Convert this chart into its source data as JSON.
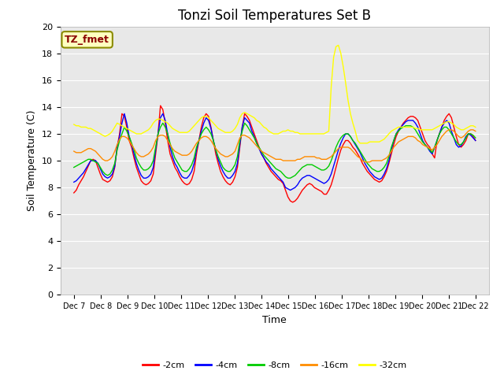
{
  "title": "Tonzi Soil Temperatures Set B",
  "xlabel": "Time",
  "ylabel": "Soil Temperature (C)",
  "ylim": [
    0,
    20
  ],
  "yticks": [
    0,
    2,
    4,
    6,
    8,
    10,
    12,
    14,
    16,
    18,
    20
  ],
  "xtick_labels": [
    "Dec 7",
    "Dec 8",
    "Dec 9",
    "Dec 10",
    "Dec 11",
    "Dec 12",
    "Dec 13",
    "Dec 14",
    "Dec 15",
    "Dec 16",
    "Dec 17",
    "Dec 18",
    "Dec 19",
    "Dec 20",
    "Dec 21",
    "Dec 22"
  ],
  "annotation_text": "TZ_fmet",
  "annotation_color": "#8B0000",
  "annotation_bg": "#FFFFC0",
  "annotation_edge": "#8B8B00",
  "legend_labels": [
    "-2cm",
    "-4cm",
    "-8cm",
    "-16cm",
    "-32cm"
  ],
  "legend_colors": [
    "#FF0000",
    "#0000FF",
    "#00CC00",
    "#FF8C00",
    "#FFFF00"
  ],
  "background_color": "#E8E8E8",
  "title_fontsize": 12,
  "tick_fontsize": 7,
  "axis_label_fontsize": 9,
  "series": {
    "neg2cm": [
      7.6,
      7.8,
      8.2,
      8.5,
      8.8,
      9.2,
      9.6,
      10.0,
      10.1,
      10.0,
      9.5,
      9.0,
      8.6,
      8.5,
      8.4,
      8.5,
      8.8,
      9.5,
      11.0,
      12.0,
      13.5,
      13.3,
      12.5,
      11.5,
      11.0,
      10.2,
      9.5,
      9.0,
      8.5,
      8.3,
      8.2,
      8.3,
      8.5,
      9.0,
      10.5,
      12.0,
      14.1,
      13.8,
      12.8,
      11.5,
      10.5,
      10.0,
      9.5,
      9.2,
      8.8,
      8.5,
      8.3,
      8.2,
      8.3,
      8.6,
      9.2,
      10.5,
      11.5,
      12.5,
      13.2,
      13.5,
      13.3,
      12.5,
      11.5,
      10.5,
      9.8,
      9.2,
      8.8,
      8.5,
      8.3,
      8.2,
      8.4,
      8.8,
      9.5,
      11.0,
      12.5,
      13.5,
      13.3,
      13.0,
      12.5,
      12.0,
      11.5,
      11.0,
      10.5,
      10.2,
      9.8,
      9.5,
      9.2,
      9.0,
      8.8,
      8.6,
      8.5,
      8.3,
      7.8,
      7.3,
      7.0,
      6.9,
      7.0,
      7.2,
      7.5,
      7.8,
      8.0,
      8.2,
      8.3,
      8.2,
      8.0,
      7.9,
      7.8,
      7.7,
      7.5,
      7.5,
      7.8,
      8.2,
      8.8,
      9.5,
      10.2,
      10.8,
      11.2,
      11.5,
      11.5,
      11.3,
      11.0,
      10.8,
      10.5,
      10.2,
      9.8,
      9.5,
      9.2,
      9.0,
      8.8,
      8.6,
      8.5,
      8.4,
      8.5,
      8.8,
      9.2,
      9.8,
      10.5,
      11.2,
      11.8,
      12.2,
      12.5,
      12.8,
      13.0,
      13.2,
      13.3,
      13.3,
      13.2,
      13.0,
      12.5,
      12.0,
      11.5,
      11.2,
      11.0,
      10.5,
      10.2,
      11.5,
      12.0,
      12.5,
      13.0,
      13.3,
      13.5,
      13.2,
      12.5,
      11.8,
      11.2,
      11.0,
      11.2,
      11.5,
      12.0,
      12.0,
      11.8,
      11.5
    ],
    "neg4cm": [
      8.4,
      8.5,
      8.7,
      8.9,
      9.1,
      9.4,
      9.7,
      10.0,
      10.0,
      10.0,
      9.8,
      9.4,
      9.0,
      8.8,
      8.7,
      8.8,
      9.0,
      9.6,
      11.0,
      11.8,
      12.8,
      13.5,
      12.8,
      11.8,
      11.2,
      10.5,
      9.8,
      9.3,
      8.9,
      8.7,
      8.7,
      8.8,
      9.0,
      9.5,
      10.8,
      12.0,
      13.2,
      13.5,
      13.0,
      12.0,
      11.0,
      10.3,
      9.8,
      9.5,
      9.1,
      8.8,
      8.7,
      8.7,
      8.9,
      9.2,
      9.8,
      10.8,
      11.5,
      12.2,
      12.8,
      13.2,
      13.0,
      12.4,
      11.5,
      10.8,
      10.1,
      9.6,
      9.2,
      8.9,
      8.7,
      8.7,
      8.9,
      9.2,
      9.8,
      11.2,
      12.5,
      13.2,
      13.0,
      12.8,
      12.2,
      11.8,
      11.3,
      10.9,
      10.5,
      10.2,
      9.9,
      9.7,
      9.4,
      9.2,
      9.0,
      8.8,
      8.6,
      8.4,
      8.0,
      7.9,
      7.8,
      7.9,
      8.0,
      8.2,
      8.5,
      8.7,
      8.8,
      8.9,
      8.9,
      8.8,
      8.7,
      8.6,
      8.5,
      8.4,
      8.3,
      8.4,
      8.6,
      9.0,
      9.6,
      10.2,
      10.8,
      11.3,
      11.7,
      12.0,
      12.0,
      11.8,
      11.5,
      11.2,
      10.9,
      10.6,
      10.2,
      9.8,
      9.5,
      9.2,
      9.0,
      8.8,
      8.7,
      8.6,
      8.7,
      9.0,
      9.4,
      10.0,
      10.8,
      11.5,
      12.0,
      12.3,
      12.5,
      12.7,
      12.9,
      13.0,
      13.0,
      13.0,
      12.8,
      12.5,
      12.0,
      11.5,
      11.2,
      11.0,
      10.7,
      10.5,
      11.0,
      11.5,
      12.0,
      12.5,
      12.8,
      13.0,
      12.8,
      12.2,
      11.7,
      11.2,
      11.0,
      11.1,
      11.4,
      11.8,
      12.0,
      11.9,
      11.7,
      11.5
    ],
    "neg8cm": [
      9.5,
      9.6,
      9.7,
      9.8,
      9.9,
      10.0,
      10.1,
      10.1,
      10.0,
      9.9,
      9.8,
      9.5,
      9.2,
      9.0,
      8.9,
      9.0,
      9.3,
      9.8,
      10.8,
      11.5,
      12.0,
      12.5,
      12.2,
      11.8,
      11.3,
      10.8,
      10.2,
      9.8,
      9.5,
      9.3,
      9.3,
      9.4,
      9.6,
      10.0,
      11.0,
      12.0,
      12.5,
      12.8,
      12.5,
      12.0,
      11.3,
      10.7,
      10.2,
      9.9,
      9.6,
      9.3,
      9.2,
      9.2,
      9.4,
      9.7,
      10.2,
      11.0,
      11.5,
      12.0,
      12.3,
      12.5,
      12.3,
      12.0,
      11.5,
      10.8,
      10.3,
      9.9,
      9.5,
      9.3,
      9.2,
      9.2,
      9.4,
      9.7,
      10.3,
      11.5,
      12.2,
      12.8,
      12.6,
      12.3,
      12.0,
      11.7,
      11.3,
      11.0,
      10.7,
      10.4,
      10.2,
      10.0,
      9.8,
      9.6,
      9.4,
      9.3,
      9.2,
      9.0,
      8.8,
      8.7,
      8.7,
      8.8,
      8.9,
      9.1,
      9.3,
      9.5,
      9.6,
      9.7,
      9.7,
      9.7,
      9.6,
      9.5,
      9.4,
      9.3,
      9.3,
      9.4,
      9.6,
      10.0,
      10.5,
      11.0,
      11.4,
      11.7,
      11.9,
      12.0,
      12.0,
      11.8,
      11.5,
      11.3,
      11.0,
      10.7,
      10.4,
      10.1,
      9.8,
      9.6,
      9.4,
      9.3,
      9.2,
      9.2,
      9.3,
      9.5,
      9.8,
      10.3,
      11.0,
      11.5,
      12.0,
      12.2,
      12.4,
      12.5,
      12.6,
      12.6,
      12.6,
      12.5,
      12.3,
      12.0,
      11.7,
      11.4,
      11.2,
      11.0,
      10.8,
      10.6,
      11.0,
      11.5,
      12.0,
      12.3,
      12.5,
      12.5,
      12.3,
      12.0,
      11.7,
      11.4,
      11.2,
      11.2,
      11.4,
      11.7,
      12.0,
      12.0,
      11.9,
      11.7
    ],
    "neg16cm": [
      10.7,
      10.6,
      10.6,
      10.6,
      10.7,
      10.8,
      10.9,
      10.9,
      10.8,
      10.7,
      10.5,
      10.3,
      10.1,
      10.0,
      10.0,
      10.1,
      10.3,
      10.7,
      11.2,
      11.6,
      11.8,
      11.8,
      11.7,
      11.5,
      11.2,
      10.9,
      10.6,
      10.4,
      10.3,
      10.3,
      10.4,
      10.5,
      10.7,
      11.0,
      11.5,
      11.8,
      11.9,
      11.9,
      11.8,
      11.5,
      11.2,
      10.9,
      10.7,
      10.6,
      10.5,
      10.4,
      10.4,
      10.4,
      10.5,
      10.7,
      11.0,
      11.3,
      11.5,
      11.7,
      11.8,
      11.8,
      11.7,
      11.5,
      11.2,
      10.9,
      10.7,
      10.5,
      10.4,
      10.3,
      10.3,
      10.4,
      10.5,
      10.7,
      11.2,
      11.7,
      11.9,
      11.9,
      11.8,
      11.7,
      11.5,
      11.3,
      11.1,
      10.9,
      10.7,
      10.6,
      10.5,
      10.4,
      10.3,
      10.2,
      10.1,
      10.1,
      10.1,
      10.0,
      10.0,
      10.0,
      10.0,
      10.0,
      10.0,
      10.1,
      10.1,
      10.2,
      10.3,
      10.3,
      10.3,
      10.3,
      10.3,
      10.2,
      10.2,
      10.1,
      10.1,
      10.1,
      10.2,
      10.3,
      10.5,
      10.7,
      10.9,
      11.0,
      11.0,
      11.0,
      11.0,
      10.9,
      10.7,
      10.5,
      10.3,
      10.2,
      10.0,
      9.9,
      9.9,
      9.9,
      10.0,
      10.0,
      10.0,
      10.0,
      10.0,
      10.1,
      10.2,
      10.4,
      10.7,
      11.0,
      11.2,
      11.4,
      11.5,
      11.6,
      11.7,
      11.8,
      11.8,
      11.8,
      11.7,
      11.5,
      11.4,
      11.2,
      11.1,
      11.0,
      10.9,
      10.8,
      11.0,
      11.2,
      11.5,
      11.8,
      12.0,
      12.2,
      12.3,
      12.3,
      12.2,
      12.0,
      11.8,
      11.7,
      11.8,
      12.0,
      12.2,
      12.3,
      12.3,
      12.2
    ],
    "neg32cm": [
      12.7,
      12.6,
      12.6,
      12.5,
      12.5,
      12.5,
      12.4,
      12.4,
      12.3,
      12.2,
      12.1,
      12.0,
      11.9,
      11.8,
      11.9,
      12.0,
      12.2,
      12.5,
      12.8,
      12.7,
      12.6,
      12.5,
      12.4,
      12.3,
      12.2,
      12.1,
      12.0,
      12.0,
      12.0,
      12.1,
      12.2,
      12.3,
      12.5,
      12.8,
      13.0,
      13.1,
      13.1,
      13.0,
      12.9,
      12.8,
      12.6,
      12.4,
      12.3,
      12.2,
      12.1,
      12.1,
      12.1,
      12.1,
      12.2,
      12.4,
      12.6,
      12.8,
      13.0,
      13.2,
      13.3,
      13.3,
      13.2,
      13.0,
      12.8,
      12.6,
      12.4,
      12.3,
      12.2,
      12.1,
      12.1,
      12.1,
      12.2,
      12.4,
      12.7,
      13.2,
      13.5,
      13.6,
      13.5,
      13.4,
      13.3,
      13.2,
      13.0,
      12.9,
      12.7,
      12.5,
      12.4,
      12.2,
      12.1,
      12.0,
      12.0,
      12.0,
      12.1,
      12.2,
      12.2,
      12.3,
      12.2,
      12.2,
      12.1,
      12.1,
      12.0,
      12.0,
      12.0,
      12.0,
      12.0,
      12.0,
      12.0,
      12.0,
      12.0,
      12.0,
      12.0,
      12.1,
      12.2,
      15.5,
      17.7,
      18.5,
      18.6,
      18.0,
      17.0,
      15.8,
      14.5,
      13.5,
      12.8,
      12.2,
      11.5,
      11.3,
      11.3,
      11.3,
      11.3,
      11.4,
      11.4,
      11.4,
      11.4,
      11.4,
      11.5,
      11.6,
      11.8,
      12.0,
      12.2,
      12.3,
      12.4,
      12.5,
      12.5,
      12.5,
      12.5,
      12.5,
      12.5,
      12.5,
      12.4,
      12.4,
      12.3,
      12.3,
      12.3,
      12.3,
      12.3,
      12.3,
      12.4,
      12.5,
      12.6,
      12.7,
      12.8,
      12.9,
      12.9,
      12.8,
      12.7,
      12.5,
      12.4,
      12.3,
      12.3,
      12.4,
      12.5,
      12.6,
      12.6,
      12.5
    ]
  }
}
